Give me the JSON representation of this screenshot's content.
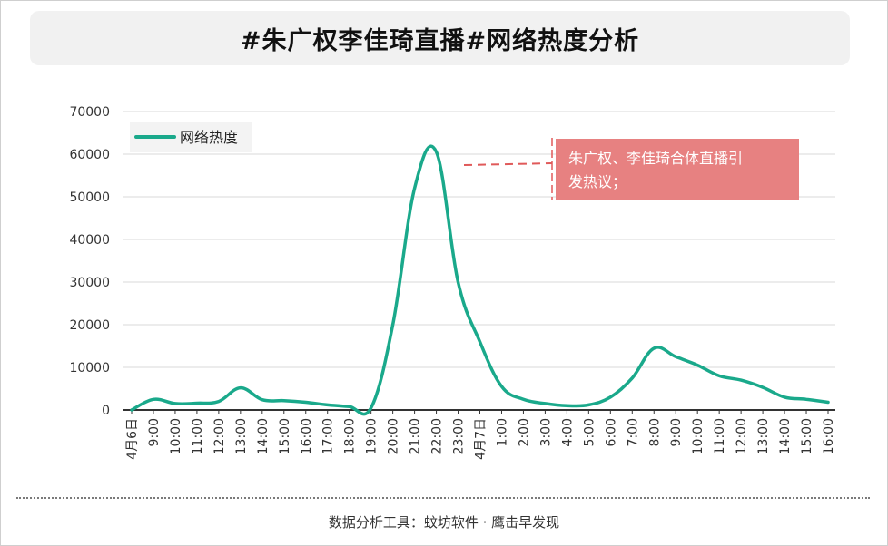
{
  "title": "#朱广权李佳琦直播#网络热度分析",
  "footer": "数据分析工具：蚊坊软件 · 鹰击早发现",
  "colors": {
    "line": "#1aa98b",
    "annotation_bg": "#e78181",
    "annotation_text": "#ffffff",
    "dash": "#e05a5a"
  },
  "chart_data": {
    "type": "line",
    "title": "#朱广权李佳琦直播#网络热度分析",
    "xlabel": "",
    "ylabel": "",
    "ylim": [
      0,
      70000
    ],
    "yticks": [
      0,
      10000,
      20000,
      30000,
      40000,
      50000,
      60000,
      70000
    ],
    "grid": true,
    "legend_position": "top-left",
    "categories": [
      "4月6日",
      "9:00",
      "10:00",
      "11:00",
      "12:00",
      "13:00",
      "14:00",
      "15:00",
      "16:00",
      "17:00",
      "18:00",
      "19:00",
      "20:00",
      "21:00",
      "22:00",
      "23:00",
      "4月7日",
      "1:00",
      "2:00",
      "3:00",
      "4:00",
      "5:00",
      "6:00",
      "7:00",
      "8:00",
      "9:00",
      "10:00",
      "11:00",
      "12:00",
      "13:00",
      "14:00",
      "15:00",
      "16:00"
    ],
    "series": [
      {
        "name": "网络热度",
        "values": [
          0,
          2500,
          1500,
          1600,
          2000,
          5200,
          2400,
          2200,
          1800,
          1200,
          800,
          500,
          20000,
          52000,
          60500,
          30000,
          16000,
          5500,
          2500,
          1500,
          1000,
          1200,
          3000,
          7500,
          14500,
          12500,
          10500,
          8000,
          7000,
          5300,
          3000,
          2500,
          1800
        ]
      }
    ],
    "annotations": [
      {
        "text": "朱广权、李佳琦合体直播引发热议；",
        "target_category": "22:00"
      }
    ]
  }
}
